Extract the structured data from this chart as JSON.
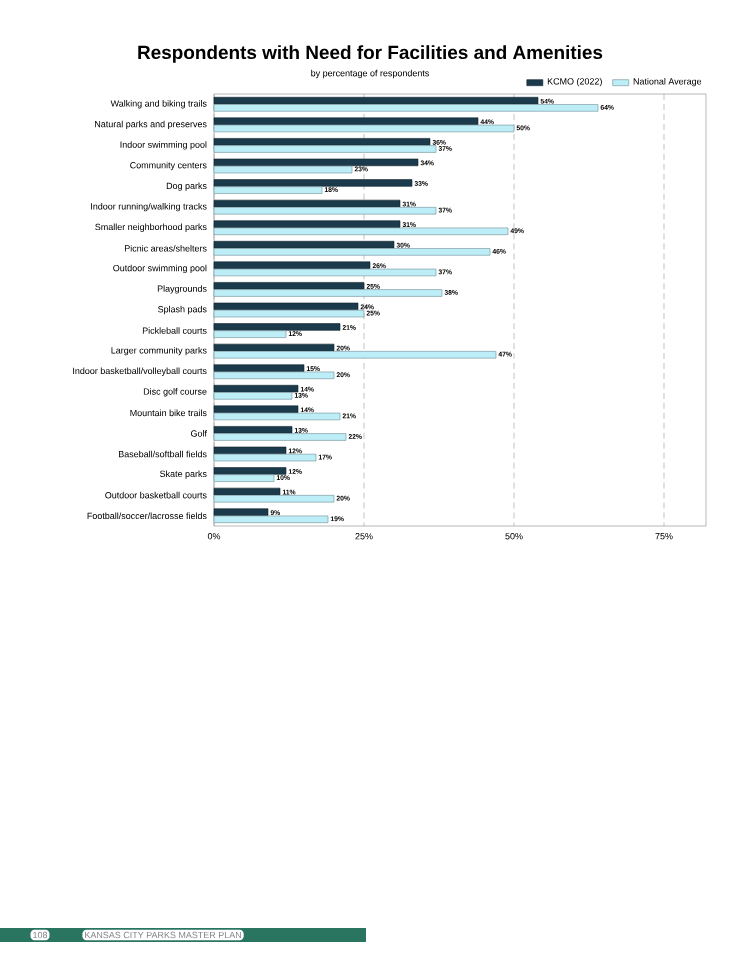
{
  "chart_data": {
    "type": "bar",
    "orientation": "horizontal",
    "title": "Respondents with Need for Facilities and Amenities",
    "subtitle": "by percentage of respondents",
    "categories": [
      "Walking and biking trails",
      "Natural parks and preserves",
      "Indoor swimming pool",
      "Community centers",
      "Dog parks",
      "Indoor running/walking tracks",
      "Smaller neighborhood parks",
      "Picnic areas/shelters",
      "Outdoor swimming pool",
      "Playgrounds",
      "Splash pads",
      "Pickleball courts",
      "Larger community parks",
      "Indoor basketball/volleyball courts",
      "Disc golf course",
      "Mountain bike trails",
      "Golf",
      "Baseball/softball fields",
      "Skate parks",
      "Outdoor basketball courts",
      "Football/soccer/lacrosse fields"
    ],
    "series": [
      {
        "name": "KCMO (2022)",
        "color": "#1b3a4b",
        "values": [
          54,
          44,
          36,
          34,
          33,
          31,
          31,
          30,
          26,
          25,
          24,
          21,
          20,
          15,
          14,
          14,
          13,
          12,
          12,
          11,
          9
        ],
        "value_labels": [
          "54%",
          "44%",
          "36%",
          "34%",
          "33%",
          "31%",
          "31%",
          "30%",
          "26%",
          "25%",
          "24%",
          "21%",
          "20%",
          "15%",
          "14%",
          "14%",
          "13%",
          "12%",
          "12%",
          "11%",
          "9%"
        ]
      },
      {
        "name": "National Average",
        "color": "#bdeef8",
        "values": [
          64,
          50,
          37,
          23,
          18,
          37,
          49,
          46,
          37,
          38,
          25,
          12,
          47,
          20,
          13,
          21,
          22,
          17,
          10,
          20,
          19
        ],
        "value_labels": [
          "64%",
          "50%",
          "37%",
          "23%",
          "18%",
          "37%",
          "49%",
          "46%",
          "37%",
          "38%",
          "25%",
          "12%",
          "47%",
          "20%",
          "13%",
          "21%",
          "22%",
          "17%",
          "10%",
          "20%",
          "19%"
        ]
      }
    ],
    "xlim": [
      0,
      82
    ],
    "xticks": [
      {
        "value": 0,
        "label": "0%"
      },
      {
        "value": 25,
        "label": "25%"
      },
      {
        "value": 50,
        "label": "50%"
      },
      {
        "value": 75,
        "label": "75%"
      }
    ],
    "grid": "x",
    "legend": "top right",
    "annotations": [
      "108",
      "KANSAS CITY PARKS MASTER PLAN"
    ]
  }
}
